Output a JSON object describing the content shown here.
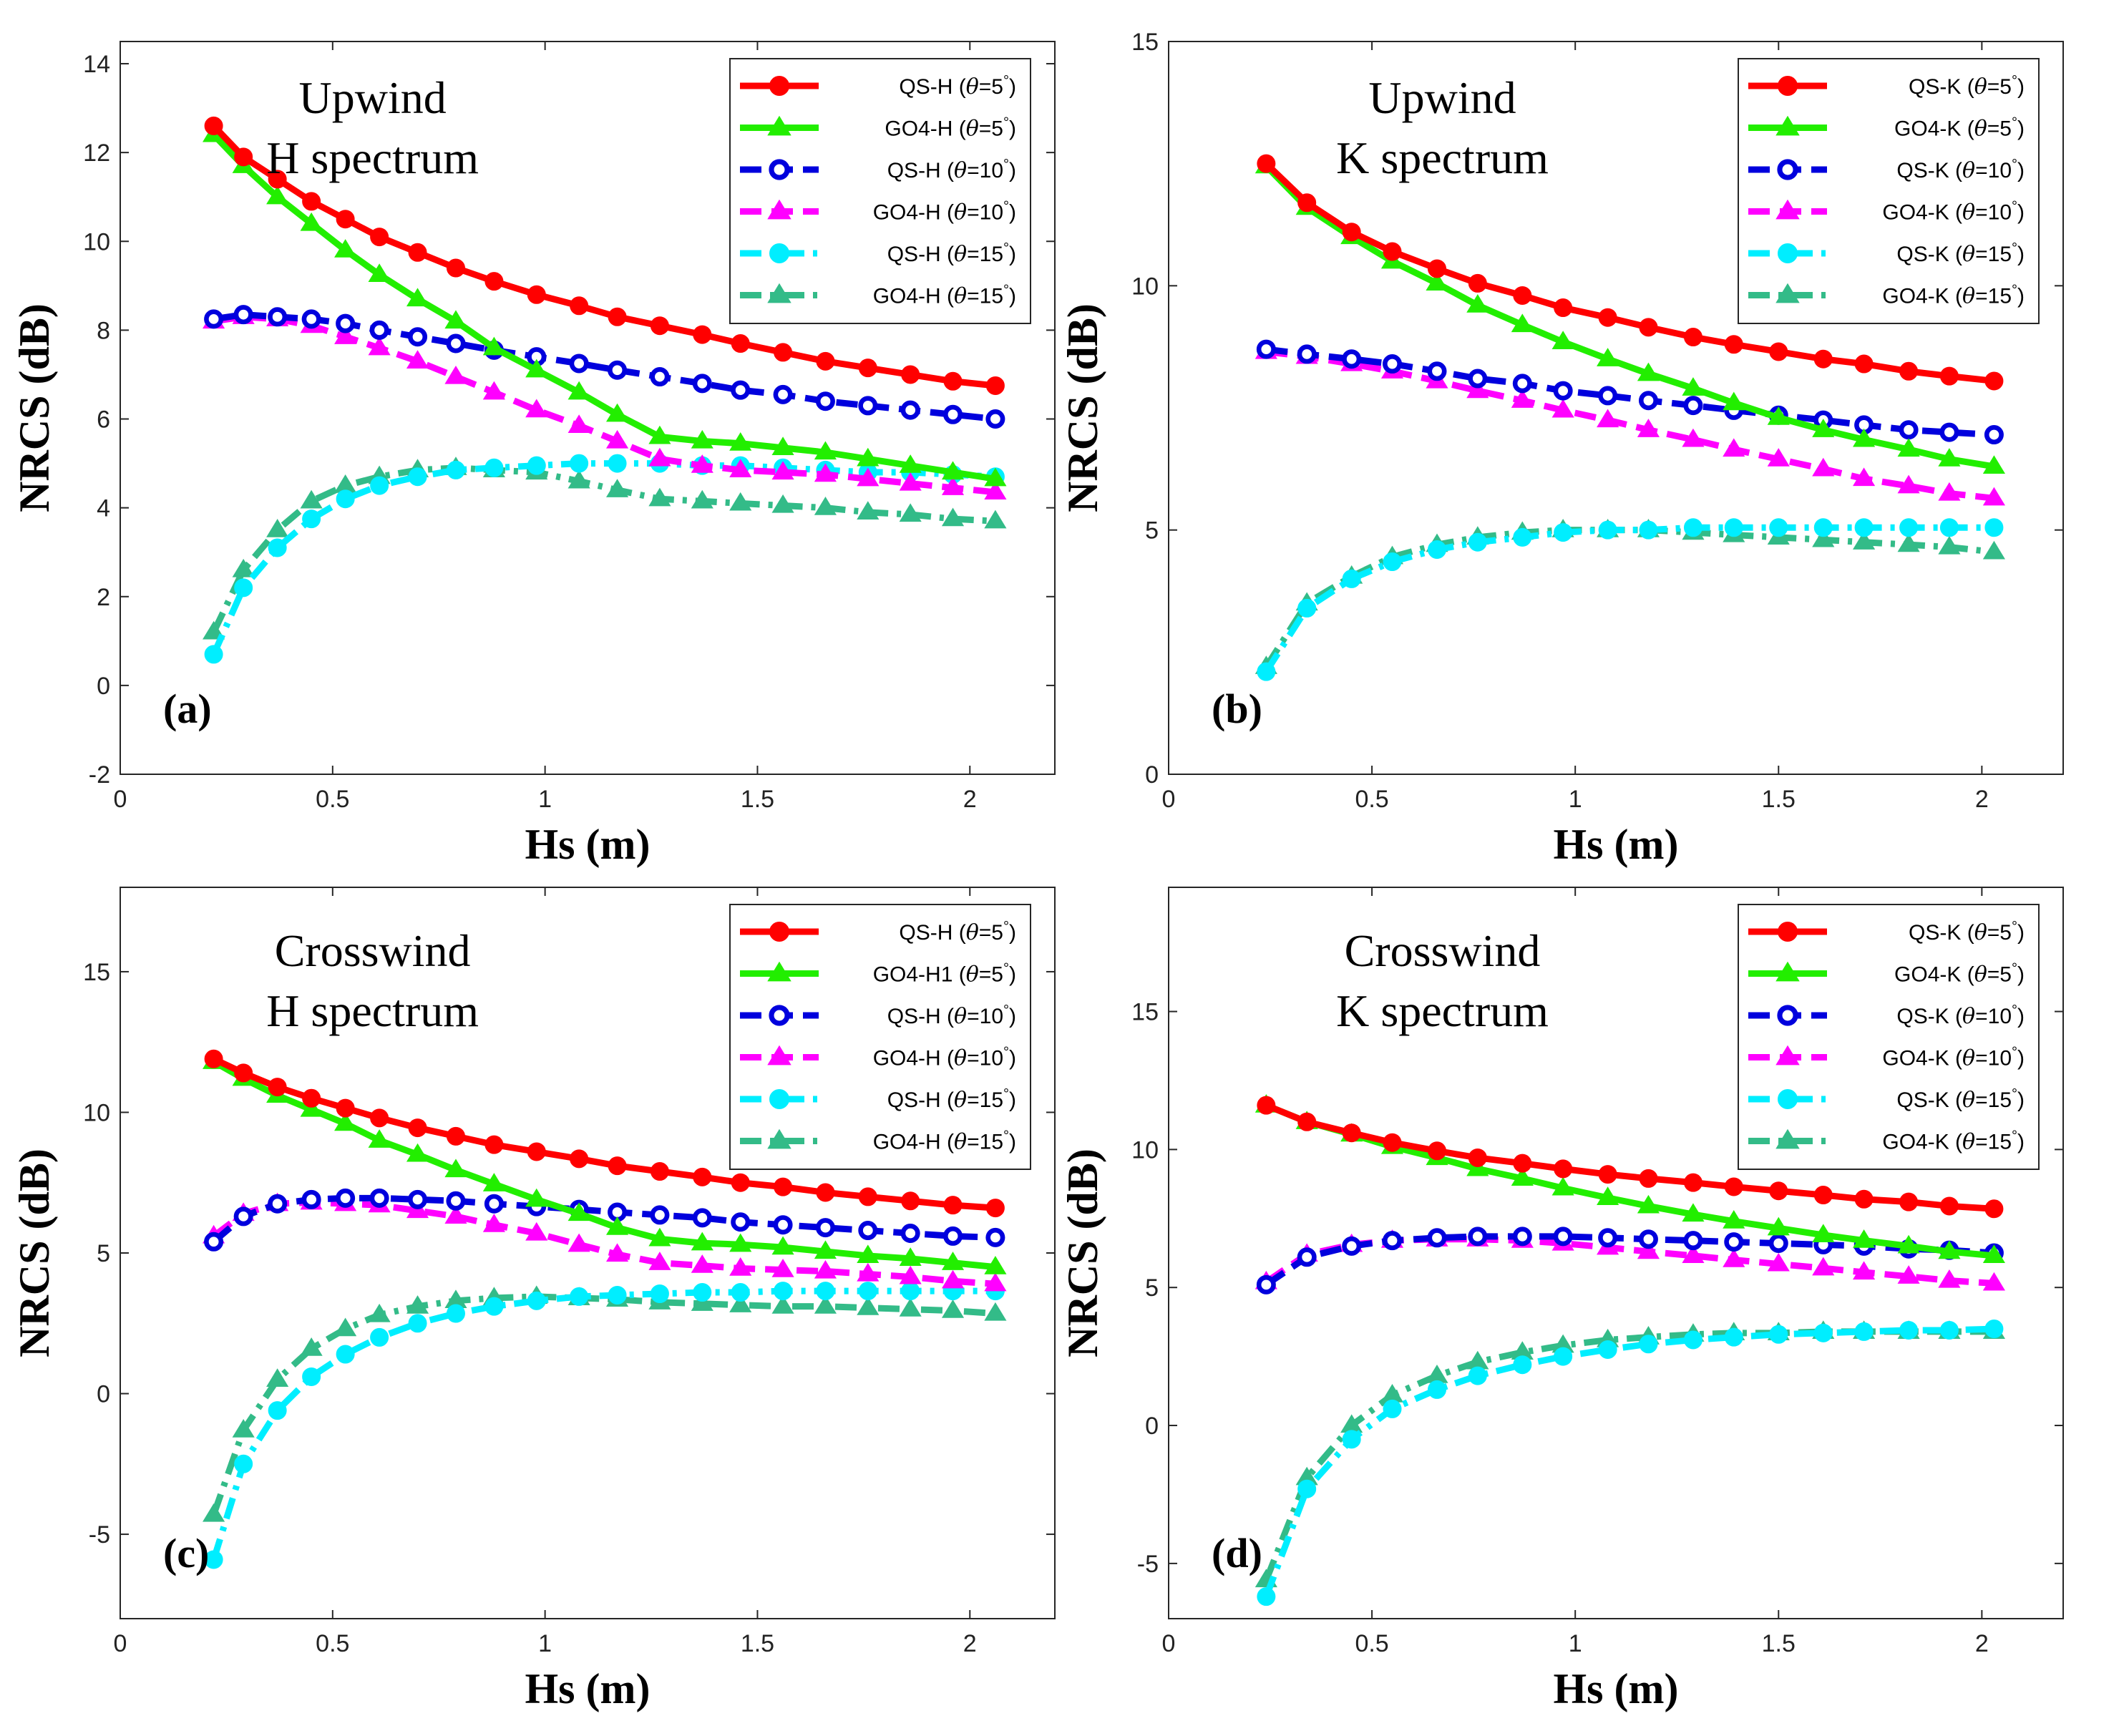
{
  "palette": {
    "red": "#ff0000",
    "green": "#22ee00",
    "blue": "#0000dd",
    "magenta": "#ff00ff",
    "cyan": "#00eeff",
    "teal": "#33bb88"
  },
  "chart_data": [
    {
      "type": "line",
      "panel_label": "(a)",
      "annotation": [
        "Upwind",
        "H spectrum"
      ],
      "xlabel": "Hs (m)",
      "ylabel": "NRCS (dB)",
      "xlim": [
        0,
        2.2
      ],
      "ylim": [
        -2,
        14.5
      ],
      "xticks": [
        0,
        0.5,
        1,
        1.5,
        2
      ],
      "xtick_labels": [
        "0",
        "0.5",
        "1",
        "1.5",
        "2"
      ],
      "yticks": [
        -2,
        0,
        2,
        4,
        6,
        8,
        10,
        12,
        14
      ],
      "ytick_labels": [
        "-2",
        "0",
        "2",
        "4",
        "6",
        "8",
        "10",
        "12",
        "14"
      ],
      "legend_position": "top-right",
      "x": [
        0.22,
        0.29,
        0.37,
        0.45,
        0.53,
        0.61,
        0.7,
        0.79,
        0.88,
        0.98,
        1.08,
        1.17,
        1.27,
        1.37,
        1.46,
        1.56,
        1.66,
        1.76,
        1.86,
        1.96,
        2.06
      ],
      "series": [
        {
          "name": "QS-H",
          "theta": "5",
          "style": "red-solid-circle",
          "values": [
            12.6,
            11.9,
            11.4,
            10.9,
            10.5,
            10.1,
            9.75,
            9.4,
            9.1,
            8.8,
            8.55,
            8.3,
            8.1,
            7.9,
            7.7,
            7.5,
            7.3,
            7.15,
            7.0,
            6.85,
            6.75
          ]
        },
        {
          "name": "GO4-H",
          "theta": "5",
          "style": "green-solid-triangle",
          "values": [
            12.4,
            11.7,
            11.0,
            10.4,
            9.8,
            9.25,
            8.7,
            8.2,
            7.6,
            7.1,
            6.6,
            6.1,
            5.6,
            5.5,
            5.45,
            5.35,
            5.25,
            5.1,
            4.95,
            4.8,
            4.65
          ]
        },
        {
          "name": "QS-H",
          "theta": "10",
          "style": "blue-dashed-opencircle",
          "values": [
            8.25,
            8.35,
            8.3,
            8.25,
            8.15,
            8.0,
            7.85,
            7.7,
            7.55,
            7.4,
            7.25,
            7.1,
            6.95,
            6.8,
            6.65,
            6.55,
            6.4,
            6.3,
            6.2,
            6.1,
            6.0
          ]
        },
        {
          "name": "GO4-H",
          "theta": "10",
          "style": "magenta-dashed-triangle",
          "values": [
            8.2,
            8.3,
            8.25,
            8.1,
            7.85,
            7.6,
            7.3,
            6.95,
            6.6,
            6.2,
            5.85,
            5.5,
            5.1,
            4.95,
            4.85,
            4.8,
            4.75,
            4.65,
            4.55,
            4.45,
            4.35
          ]
        },
        {
          "name": "QS-H",
          "theta": "15",
          "style": "cyan-dashdot-circle",
          "values": [
            0.7,
            2.2,
            3.1,
            3.75,
            4.2,
            4.5,
            4.7,
            4.85,
            4.9,
            4.95,
            5.0,
            5.0,
            5.0,
            4.95,
            4.95,
            4.9,
            4.85,
            4.8,
            4.8,
            4.75,
            4.7
          ]
        },
        {
          "name": "GO4-H",
          "theta": "15",
          "style": "teal-dashdot-triangle",
          "values": [
            1.2,
            2.6,
            3.5,
            4.15,
            4.5,
            4.7,
            4.85,
            4.9,
            4.85,
            4.8,
            4.6,
            4.4,
            4.2,
            4.15,
            4.1,
            4.05,
            4.0,
            3.9,
            3.85,
            3.75,
            3.7
          ]
        }
      ]
    },
    {
      "type": "line",
      "panel_label": "(b)",
      "annotation": [
        "Upwind",
        "K spectrum"
      ],
      "xlabel": "Hs (m)",
      "ylabel": "NRCS (dB)",
      "xlim": [
        0,
        2.2
      ],
      "ylim": [
        0,
        15
      ],
      "xticks": [
        0,
        0.5,
        1,
        1.5,
        2
      ],
      "xtick_labels": [
        "0",
        "0.5",
        "1",
        "1.5",
        "2"
      ],
      "yticks": [
        0,
        5,
        10,
        15
      ],
      "ytick_labels": [
        "0",
        "5",
        "10",
        "15"
      ],
      "legend_position": "top-right",
      "x": [
        0.24,
        0.34,
        0.45,
        0.55,
        0.66,
        0.76,
        0.87,
        0.97,
        1.08,
        1.18,
        1.29,
        1.39,
        1.5,
        1.61,
        1.71,
        1.82,
        1.92,
        2.03
      ],
      "series": [
        {
          "name": "QS-K",
          "theta": "5",
          "style": "red-solid-circle",
          "values": [
            12.5,
            11.7,
            11.1,
            10.7,
            10.35,
            10.05,
            9.8,
            9.55,
            9.35,
            9.15,
            8.95,
            8.8,
            8.65,
            8.5,
            8.4,
            8.25,
            8.15,
            8.05
          ]
        },
        {
          "name": "GO4-K",
          "theta": "5",
          "style": "green-solid-triangle",
          "values": [
            12.45,
            11.6,
            11.0,
            10.5,
            10.05,
            9.6,
            9.2,
            8.85,
            8.5,
            8.2,
            7.9,
            7.6,
            7.3,
            7.05,
            6.85,
            6.65,
            6.45,
            6.3
          ]
        },
        {
          "name": "QS-K",
          "theta": "10",
          "style": "blue-dashed-opencircle",
          "values": [
            8.7,
            8.6,
            8.5,
            8.4,
            8.25,
            8.1,
            8.0,
            7.85,
            7.75,
            7.65,
            7.55,
            7.45,
            7.35,
            7.25,
            7.15,
            7.05,
            7.0,
            6.95
          ]
        },
        {
          "name": "GO4-K",
          "theta": "10",
          "style": "magenta-dashed-triangle",
          "values": [
            8.65,
            8.55,
            8.4,
            8.25,
            8.05,
            7.85,
            7.65,
            7.45,
            7.25,
            7.05,
            6.85,
            6.65,
            6.45,
            6.25,
            6.05,
            5.9,
            5.75,
            5.65
          ]
        },
        {
          "name": "QS-K",
          "theta": "15",
          "style": "cyan-dashdot-circle",
          "values": [
            2.1,
            3.4,
            4.0,
            4.35,
            4.6,
            4.75,
            4.85,
            4.95,
            5.0,
            5.0,
            5.05,
            5.05,
            5.05,
            5.05,
            5.05,
            5.05,
            5.05,
            5.05
          ]
        },
        {
          "name": "GO4-K",
          "theta": "15",
          "style": "teal-dashdot-triangle",
          "values": [
            2.2,
            3.5,
            4.05,
            4.45,
            4.7,
            4.85,
            4.95,
            5.0,
            5.0,
            5.0,
            4.95,
            4.9,
            4.85,
            4.8,
            4.75,
            4.7,
            4.65,
            4.55
          ]
        }
      ]
    },
    {
      "type": "line",
      "panel_label": "(c)",
      "annotation": [
        "Crosswind",
        "H spectrum"
      ],
      "xlabel": "Hs (m)",
      "ylabel": "NRCS (dB)",
      "xlim": [
        0,
        2.2
      ],
      "ylim": [
        -8,
        18
      ],
      "xticks": [
        0,
        0.5,
        1,
        1.5,
        2
      ],
      "xtick_labels": [
        "0",
        "0.5",
        "1",
        "1.5",
        "2"
      ],
      "yticks": [
        -5,
        0,
        5,
        10,
        15
      ],
      "ytick_labels": [
        "-5",
        "0",
        "5",
        "10",
        "15"
      ],
      "legend_position": "top-right",
      "x": [
        0.22,
        0.29,
        0.37,
        0.45,
        0.53,
        0.61,
        0.7,
        0.79,
        0.88,
        0.98,
        1.08,
        1.17,
        1.27,
        1.37,
        1.46,
        1.56,
        1.66,
        1.76,
        1.86,
        1.96,
        2.06
      ],
      "series": [
        {
          "name": "QS-H",
          "theta": "5",
          "style": "red-solid-circle",
          "values": [
            11.9,
            11.4,
            10.9,
            10.5,
            10.15,
            9.8,
            9.45,
            9.15,
            8.85,
            8.6,
            8.35,
            8.1,
            7.9,
            7.7,
            7.5,
            7.35,
            7.15,
            7.0,
            6.85,
            6.7,
            6.6
          ]
        },
        {
          "name": "GO4-H1",
          "theta": "5",
          "style": "green-solid-triangle",
          "values": [
            11.8,
            11.2,
            10.6,
            10.1,
            9.6,
            9.0,
            8.5,
            7.95,
            7.45,
            6.9,
            6.4,
            5.9,
            5.5,
            5.35,
            5.3,
            5.2,
            5.05,
            4.9,
            4.8,
            4.65,
            4.5
          ]
        },
        {
          "name": "QS-H",
          "theta": "10",
          "style": "blue-dashed-opencircle",
          "values": [
            5.4,
            6.3,
            6.75,
            6.9,
            6.95,
            6.95,
            6.9,
            6.85,
            6.75,
            6.65,
            6.55,
            6.45,
            6.35,
            6.25,
            6.1,
            6.0,
            5.9,
            5.8,
            5.7,
            5.6,
            5.55
          ]
        },
        {
          "name": "GO4-H",
          "theta": "10",
          "style": "magenta-dashed-triangle",
          "values": [
            5.6,
            6.4,
            6.75,
            6.8,
            6.75,
            6.7,
            6.5,
            6.3,
            6.0,
            5.7,
            5.3,
            4.95,
            4.65,
            4.55,
            4.45,
            4.4,
            4.35,
            4.25,
            4.15,
            4.0,
            3.9
          ]
        },
        {
          "name": "QS-H",
          "theta": "15",
          "style": "cyan-dashdot-circle",
          "values": [
            -5.9,
            -2.5,
            -0.6,
            0.6,
            1.4,
            2.0,
            2.5,
            2.85,
            3.1,
            3.3,
            3.45,
            3.5,
            3.55,
            3.6,
            3.6,
            3.65,
            3.65,
            3.65,
            3.65,
            3.65,
            3.65
          ]
        },
        {
          "name": "GO4-H",
          "theta": "15",
          "style": "teal-dashdot-triangle",
          "values": [
            -4.3,
            -1.3,
            0.5,
            1.6,
            2.3,
            2.8,
            3.1,
            3.3,
            3.4,
            3.45,
            3.4,
            3.35,
            3.25,
            3.2,
            3.15,
            3.1,
            3.1,
            3.05,
            3.0,
            2.95,
            2.85
          ]
        }
      ]
    },
    {
      "type": "line",
      "panel_label": "(d)",
      "annotation": [
        "Crosswind",
        "K spectrum"
      ],
      "xlabel": "Hs (m)",
      "ylabel": "NRCS (dB)",
      "xlim": [
        0,
        2.2
      ],
      "ylim": [
        -7,
        19.5
      ],
      "xticks": [
        0,
        0.5,
        1,
        1.5,
        2
      ],
      "xtick_labels": [
        "0",
        "0.5",
        "1",
        "1.5",
        "2"
      ],
      "yticks": [
        -5,
        0,
        5,
        10,
        15
      ],
      "ytick_labels": [
        "-5",
        "0",
        "5",
        "10",
        "15"
      ],
      "legend_position": "top-right",
      "x": [
        0.24,
        0.34,
        0.45,
        0.55,
        0.66,
        0.76,
        0.87,
        0.97,
        1.08,
        1.18,
        1.29,
        1.39,
        1.5,
        1.61,
        1.71,
        1.82,
        1.92,
        2.03
      ],
      "series": [
        {
          "name": "QS-K",
          "theta": "5",
          "style": "red-solid-circle",
          "values": [
            11.6,
            11.0,
            10.6,
            10.25,
            9.95,
            9.7,
            9.5,
            9.3,
            9.1,
            8.95,
            8.8,
            8.65,
            8.5,
            8.35,
            8.2,
            8.1,
            7.95,
            7.85
          ]
        },
        {
          "name": "GO4-K",
          "theta": "5",
          "style": "green-solid-triangle",
          "values": [
            11.6,
            11.0,
            10.55,
            10.1,
            9.7,
            9.3,
            8.95,
            8.6,
            8.25,
            7.95,
            7.65,
            7.4,
            7.15,
            6.9,
            6.7,
            6.5,
            6.3,
            6.15
          ]
        },
        {
          "name": "QS-K",
          "theta": "10",
          "style": "blue-dashed-opencircle",
          "values": [
            5.1,
            6.1,
            6.5,
            6.7,
            6.8,
            6.85,
            6.85,
            6.85,
            6.8,
            6.75,
            6.7,
            6.65,
            6.6,
            6.55,
            6.5,
            6.4,
            6.35,
            6.25
          ]
        },
        {
          "name": "GO4-K",
          "theta": "10",
          "style": "magenta-dashed-triangle",
          "values": [
            5.2,
            6.2,
            6.55,
            6.7,
            6.75,
            6.75,
            6.7,
            6.6,
            6.45,
            6.3,
            6.15,
            6.0,
            5.85,
            5.7,
            5.55,
            5.4,
            5.25,
            5.15
          ]
        },
        {
          "name": "QS-K",
          "theta": "15",
          "style": "cyan-dashdot-circle",
          "values": [
            -6.2,
            -2.3,
            -0.5,
            0.6,
            1.3,
            1.8,
            2.2,
            2.5,
            2.75,
            2.95,
            3.1,
            3.2,
            3.3,
            3.35,
            3.4,
            3.45,
            3.45,
            3.5
          ]
        },
        {
          "name": "GO4-K",
          "theta": "15",
          "style": "teal-dashdot-triangle",
          "values": [
            -5.6,
            -1.9,
            0.0,
            1.1,
            1.8,
            2.3,
            2.65,
            2.9,
            3.1,
            3.2,
            3.3,
            3.35,
            3.35,
            3.4,
            3.4,
            3.4,
            3.4,
            3.4
          ]
        }
      ]
    }
  ]
}
